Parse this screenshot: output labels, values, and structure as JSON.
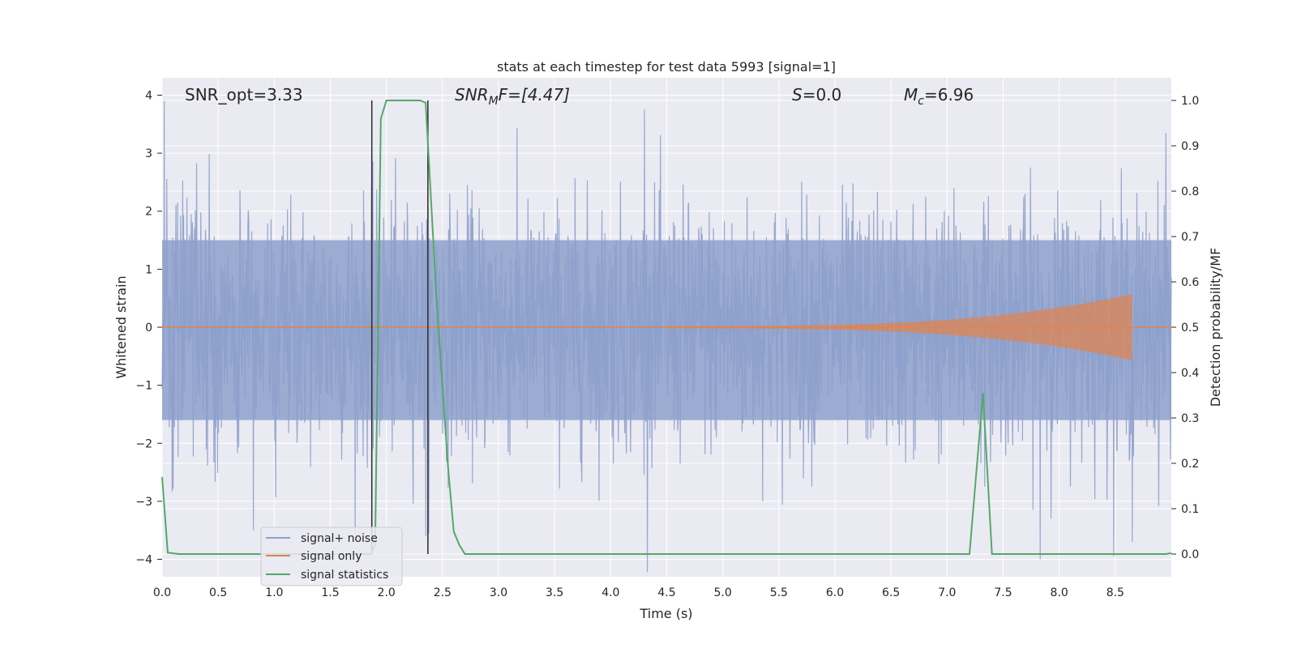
{
  "chart_data": {
    "type": "line",
    "title": "stats at each timestep for test data 5993 [signal=1]",
    "xlabel": "Time (s)",
    "ylabel": "Whitened strain",
    "ylabel_right": "Detection probability/MF",
    "xlim": [
      0.0,
      9.0
    ],
    "ylim": [
      -4.3,
      4.3
    ],
    "ylim_right": [
      -0.05,
      1.05
    ],
    "x_ticks": [
      "0.0",
      "0.5",
      "1.0",
      "1.5",
      "2.0",
      "2.5",
      "3.0",
      "3.5",
      "4.0",
      "4.5",
      "5.0",
      "5.5",
      "6.0",
      "6.5",
      "7.0",
      "7.5",
      "8.0",
      "8.5"
    ],
    "y_ticks": [
      "−4",
      "−3",
      "−2",
      "−1",
      "0",
      "1",
      "2",
      "3",
      "4"
    ],
    "y_right_ticks": [
      "0.0",
      "0.1",
      "0.2",
      "0.3",
      "0.4",
      "0.5",
      "0.6",
      "0.7",
      "0.8",
      "0.9",
      "1.0"
    ],
    "grid": true,
    "annotations": {
      "snr_opt": "SNR_opt=3.33",
      "snr_mf_main": "SNR",
      "snr_mf_sub": "M",
      "snr_mf_rest": "F=[4.47]",
      "s_main": "S",
      "s_rest": "=0.0",
      "mc_main": "M",
      "mc_sub": "c",
      "mc_rest": "=6.96"
    },
    "vertical_lines_x": [
      1.87,
      2.37
    ],
    "legend_position": "lower-left",
    "series": [
      {
        "name": "signal+ noise",
        "color": "#8da0cb",
        "description_level": "noise envelope",
        "abs_amplitude_typical": 1.6,
        "peak_values": [
          [
            0.02,
            3.9
          ],
          [
            2.35,
            -3.6
          ],
          [
            7.83,
            -4.0
          ],
          [
            8.95,
            3.35
          ],
          [
            4.3,
            3.75
          ],
          [
            8.65,
            -3.7
          ]
        ]
      },
      {
        "name": "signal only",
        "color": "#dd8452",
        "chirp_start_x": 4.5,
        "chirp_end_x": 8.65,
        "chirp_peak_amplitude": 0.55
      },
      {
        "name": "signal statistics",
        "color": "#55a868",
        "axis": "right",
        "x": [
          0.0,
          0.05,
          0.15,
          1.86,
          1.9,
          1.95,
          2.0,
          2.3,
          2.35,
          2.45,
          2.55,
          2.6,
          2.65,
          2.7,
          7.2,
          7.32,
          7.4,
          7.45,
          8.95,
          9.0
        ],
        "y": [
          0.17,
          0.003,
          0.0,
          0.0,
          0.02,
          0.96,
          1.0,
          1.0,
          0.995,
          0.55,
          0.19,
          0.05,
          0.02,
          0.0,
          0.0,
          0.355,
          0.0,
          0.0,
          0.0,
          0.002
        ]
      }
    ]
  },
  "colors": {
    "plot_background": "#eaeaf2",
    "grid": "#ffffff",
    "noise": "#8da0cb",
    "signal": "#dd8452",
    "stat": "#55a868",
    "vline": "#2b2b2b"
  }
}
